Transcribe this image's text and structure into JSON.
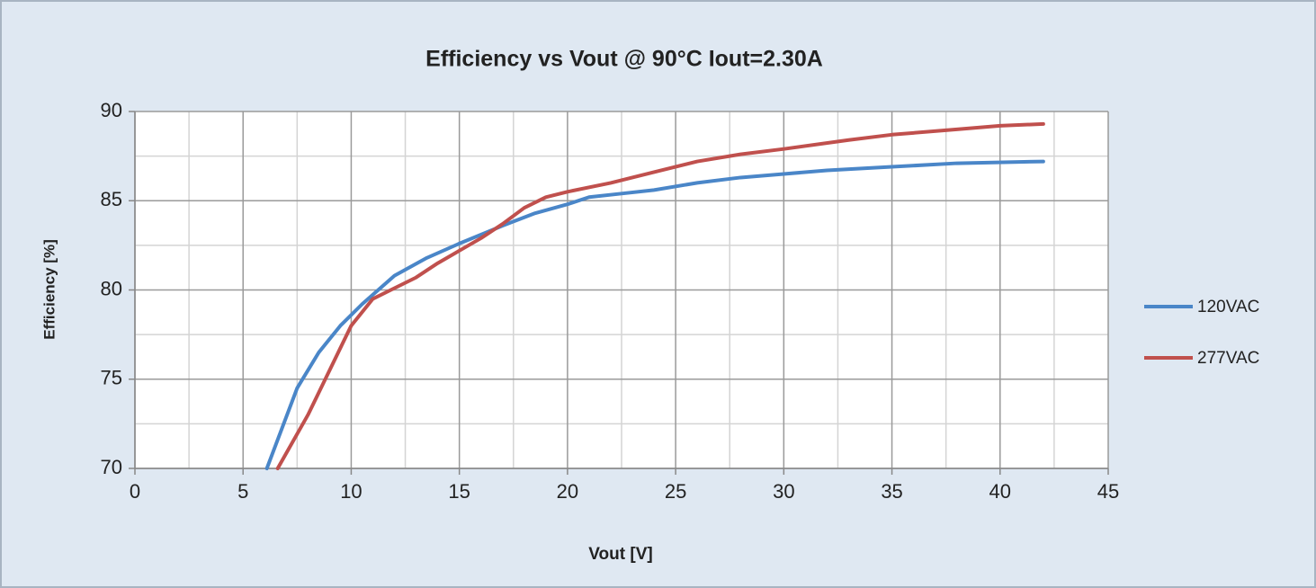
{
  "chart_data": {
    "type": "line",
    "title": "Efficiency vs Vout @ 90°C Iout=2.30A",
    "x_label": "Vout [V]",
    "y_label": "Efficiency [%]",
    "xlim": [
      0,
      45
    ],
    "xticks": [
      0,
      5,
      10,
      15,
      20,
      25,
      30,
      35,
      40,
      45
    ],
    "minor_xticks": [
      2.5,
      7.5,
      12.5,
      17.5,
      22.5,
      27.5,
      32.5,
      37.5,
      42.5
    ],
    "ylim": [
      70,
      90
    ],
    "yticks": [
      70,
      75,
      80,
      85,
      90
    ],
    "minor_yticks": [
      72.5,
      77.5,
      82.5,
      87.5
    ],
    "grid": true,
    "legend": "right",
    "series": [
      {
        "name": "120VAC",
        "color": "#4a86c8",
        "x": [
          6.1,
          7.5,
          8.5,
          9.5,
          10.5,
          12,
          13.5,
          15,
          17,
          18.5,
          20,
          21,
          22.5,
          24,
          26,
          28,
          30,
          32,
          35,
          38,
          42
        ],
        "values": [
          70,
          74.5,
          76.5,
          78,
          79.2,
          80.8,
          81.8,
          82.6,
          83.6,
          84.3,
          84.8,
          85.2,
          85.4,
          85.6,
          86,
          86.3,
          86.5,
          86.7,
          86.9,
          87.1,
          87.2
        ]
      },
      {
        "name": "277VAC",
        "color": "#c0504d",
        "x": [
          6.6,
          8,
          9,
          10,
          11,
          12,
          13,
          14,
          15,
          16,
          17,
          18,
          19,
          20,
          22,
          24,
          26,
          28,
          30,
          33,
          35,
          38,
          40,
          42
        ],
        "values": [
          70,
          73,
          75.5,
          78,
          79.5,
          80.1,
          80.7,
          81.5,
          82.2,
          82.9,
          83.7,
          84.6,
          85.2,
          85.5,
          86,
          86.6,
          87.2,
          87.6,
          87.9,
          88.4,
          88.7,
          89,
          89.2,
          89.3
        ]
      }
    ]
  }
}
